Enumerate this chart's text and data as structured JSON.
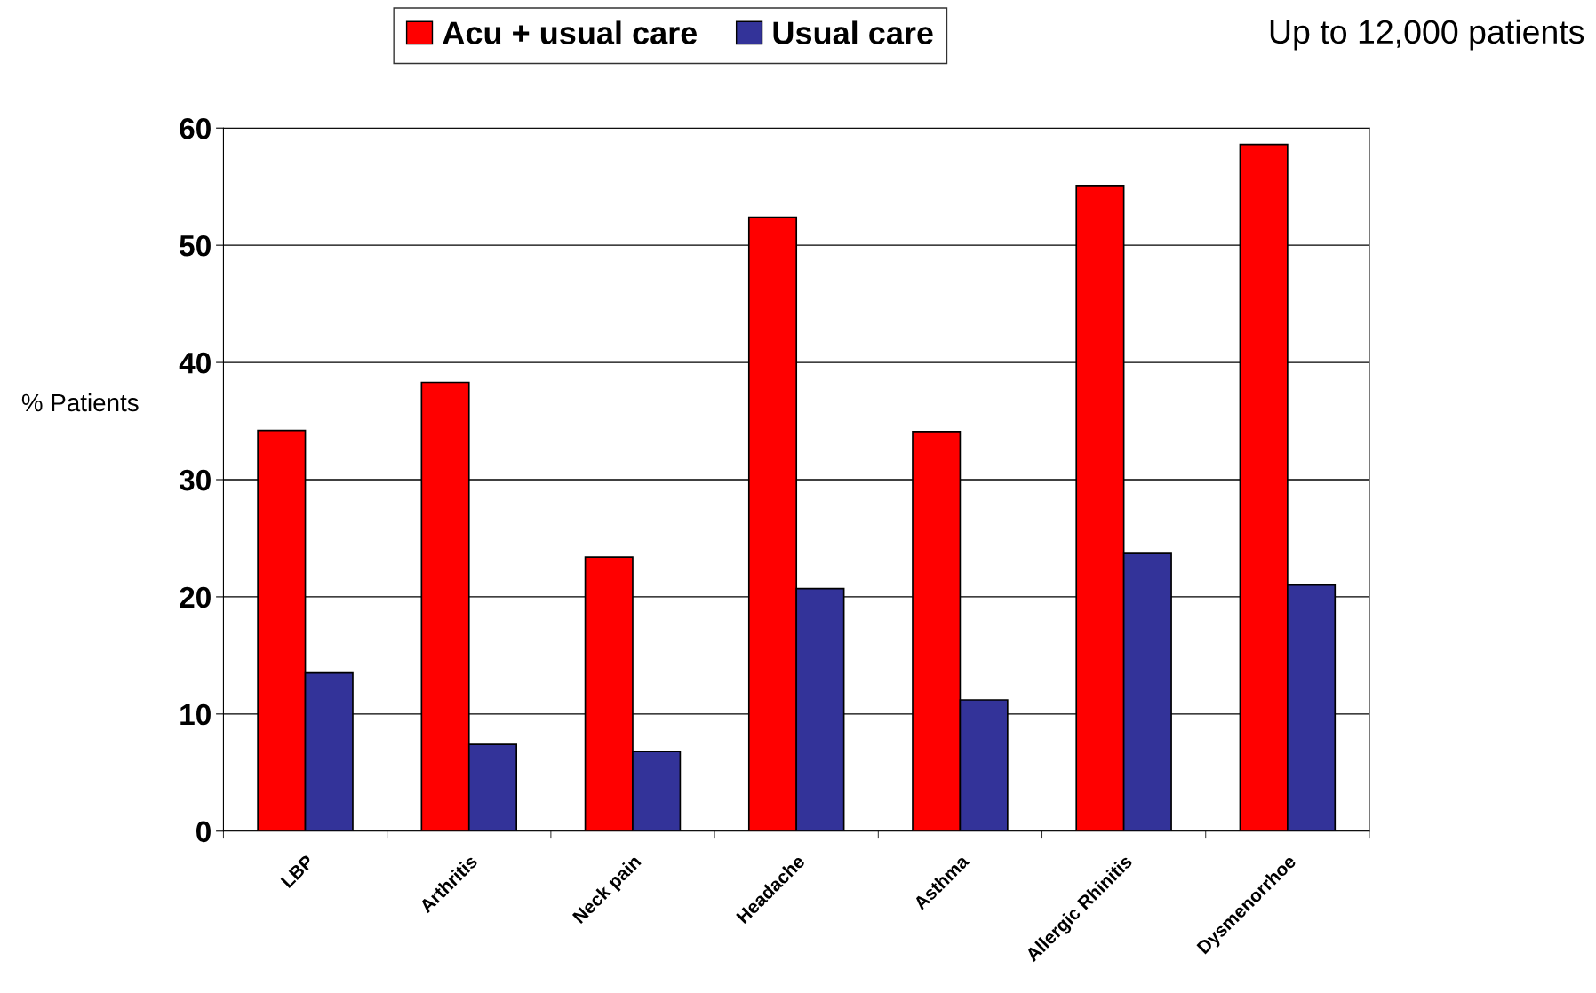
{
  "chart_data": {
    "type": "bar",
    "ylabel": "% Patients",
    "annotations": [
      "Up to 12,000 patients"
    ],
    "categories": [
      "LBP",
      "Arthritis",
      "Neck pain",
      "Headache",
      "Asthma",
      "Allergic Rhinitis",
      "Dysmenorrhoe"
    ],
    "series": [
      {
        "name": "Acu + usual care",
        "color": "#ff0000",
        "values": [
          34.2,
          38.3,
          23.4,
          52.4,
          34.1,
          55.1,
          58.6
        ]
      },
      {
        "name": "Usual care",
        "color": "#333399",
        "values": [
          13.5,
          7.4,
          6.8,
          20.7,
          11.2,
          23.7,
          21.0
        ]
      }
    ],
    "ylim": [
      0,
      60
    ],
    "yticks": [
      0,
      10,
      20,
      30,
      40,
      50,
      60
    ],
    "grid": "y",
    "legend": "top"
  }
}
